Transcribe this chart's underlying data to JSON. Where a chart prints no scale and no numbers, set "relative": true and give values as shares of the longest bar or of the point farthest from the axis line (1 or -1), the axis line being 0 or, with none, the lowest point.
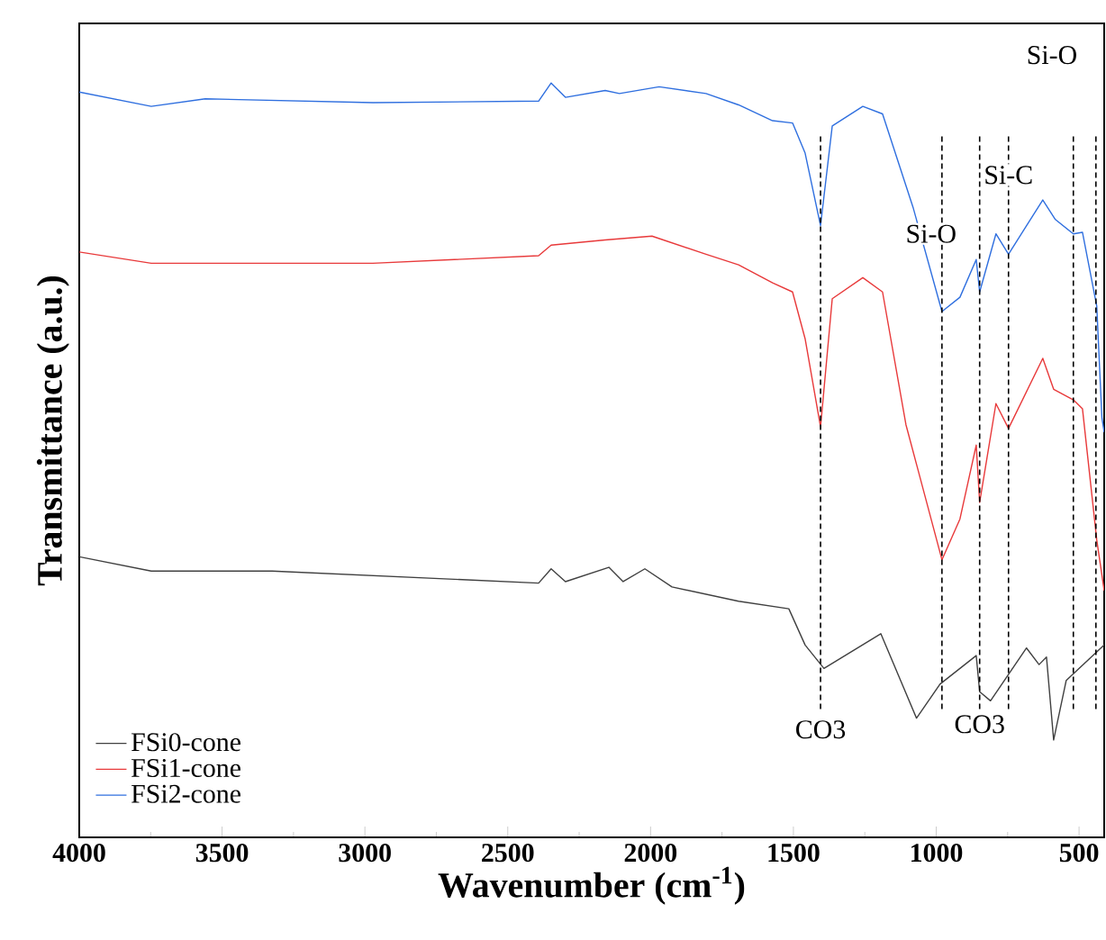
{
  "chart_data": {
    "type": "line",
    "relative": true,
    "xlabel": "Wavenumber (cm$^{-1}$)",
    "ylabel": "Transmittance (a.u.)",
    "xlim": [
      4000,
      412
    ],
    "xticks": [
      4000,
      3500,
      3000,
      2500,
      2000,
      1500,
      1000,
      500
    ],
    "legend": "bottom left",
    "grid": false,
    "marker": "none",
    "line_style": "solid",
    "tick_labels": "x",
    "series": [
      {
        "name": "FSi0-cone",
        "color": "#404040",
        "x": [
          4000,
          3748,
          3325,
          2392,
          2348,
          2298,
          2146,
          2096,
          2020,
          1925,
          1692,
          1516,
          1459,
          1393,
          1194,
          1069,
          987,
          860,
          848,
          810,
          684,
          640,
          614,
          589,
          545,
          412
        ],
        "values": [
          0.372,
          0.353,
          0.353,
          0.337,
          0.356,
          0.339,
          0.358,
          0.339,
          0.356,
          0.332,
          0.313,
          0.303,
          0.255,
          0.224,
          0.27,
          0.158,
          0.203,
          0.241,
          0.193,
          0.181,
          0.251,
          0.229,
          0.239,
          0.129,
          0.208,
          0.255
        ]
      },
      {
        "name": "FSi1-cone",
        "color": "#e8393a",
        "x": [
          4000,
          3748,
          2972,
          2392,
          2348,
          2159,
          1995,
          1806,
          1692,
          1573,
          1503,
          1459,
          1405,
          1364,
          1257,
          1188,
          1106,
          980,
          917,
          860,
          848,
          791,
          747,
          627,
          589,
          520,
          488,
          438,
          412
        ],
        "values": [
          0.776,
          0.761,
          0.761,
          0.771,
          0.785,
          0.792,
          0.797,
          0.773,
          0.759,
          0.735,
          0.723,
          0.661,
          0.544,
          0.714,
          0.742,
          0.723,
          0.547,
          0.368,
          0.422,
          0.52,
          0.444,
          0.575,
          0.542,
          0.635,
          0.594,
          0.58,
          0.568,
          0.394,
          0.327
        ]
      },
      {
        "name": "FSi2-cone",
        "color": "#2f6fdf",
        "x": [
          4000,
          3748,
          3559,
          2972,
          2392,
          2348,
          2298,
          2159,
          2109,
          1970,
          1806,
          1692,
          1573,
          1503,
          1459,
          1405,
          1364,
          1257,
          1188,
          1081,
          980,
          917,
          860,
          848,
          791,
          747,
          627,
          583,
          520,
          488,
          438,
          420,
          412
        ],
        "values": [
          0.988,
          0.969,
          0.979,
          0.974,
          0.976,
          1.0,
          0.981,
          0.99,
          0.986,
          0.995,
          0.986,
          0.971,
          0.95,
          0.947,
          0.907,
          0.811,
          0.943,
          0.969,
          0.959,
          0.835,
          0.697,
          0.716,
          0.766,
          0.723,
          0.8,
          0.773,
          0.845,
          0.819,
          0.8,
          0.802,
          0.704,
          0.556,
          0.537
        ]
      }
    ],
    "ref_lines": [
      {
        "axis": "x",
        "value": 1405,
        "color": "#000000",
        "line_style": "dashed"
      },
      {
        "axis": "x",
        "value": 980,
        "color": "#000000",
        "line_style": "dashed"
      },
      {
        "axis": "x",
        "value": 848,
        "color": "#000000",
        "line_style": "dashed"
      },
      {
        "axis": "x",
        "value": 747,
        "color": "#000000",
        "line_style": "dashed"
      },
      {
        "axis": "x",
        "value": 520,
        "color": "#000000",
        "line_style": "dashed"
      },
      {
        "axis": "x",
        "value": 441,
        "color": "#000000",
        "line_style": "dashed"
      }
    ],
    "annotations": [
      {
        "text": "CO3",
        "x": 1405,
        "y": 0.143
      },
      {
        "text": "CO3",
        "x": 848,
        "y": 0.15
      },
      {
        "text": "Si-O",
        "x": 1018,
        "y": 0.8
      },
      {
        "text": "Si-C",
        "x": 747,
        "y": 0.878
      },
      "Si-O"
    ]
  }
}
